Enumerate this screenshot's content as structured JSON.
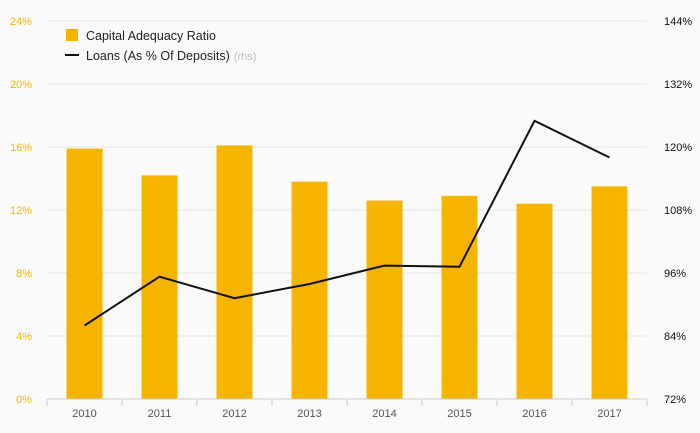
{
  "chart_data": {
    "type": "bar+line",
    "categories": [
      "2010",
      "2011",
      "2012",
      "2013",
      "2014",
      "2015",
      "2016",
      "2017"
    ],
    "series": [
      {
        "name": "Capital Adequacy Ratio",
        "type": "bar",
        "axis": "left",
        "color": "#f5b400",
        "values": [
          15.9,
          14.2,
          16.1,
          13.8,
          12.6,
          12.9,
          12.4,
          13.5
        ]
      },
      {
        "name": "Loans (As % Of Deposits)",
        "name_note": "(rhs)",
        "type": "line",
        "axis": "right",
        "color": "#111111",
        "values": [
          86.0,
          95.3,
          91.2,
          93.9,
          97.4,
          97.2,
          125.0,
          118.0
        ]
      }
    ],
    "left_axis": {
      "ylim": [
        0,
        24
      ],
      "ticks": [
        0,
        4,
        8,
        12,
        16,
        20,
        24
      ],
      "tick_labels": [
        "0%",
        "4%",
        "8%",
        "12%",
        "16%",
        "20%",
        "24%"
      ],
      "color": "#f5b400"
    },
    "right_axis": {
      "ylim": [
        72,
        144
      ],
      "ticks": [
        72,
        84,
        96,
        108,
        120,
        132,
        144
      ],
      "tick_labels": [
        "72%",
        "84%",
        "96%",
        "108%",
        "120%",
        "132%",
        "144%"
      ],
      "color": "#111111"
    },
    "legend": {
      "placement": "top-left"
    },
    "grid": true
  }
}
